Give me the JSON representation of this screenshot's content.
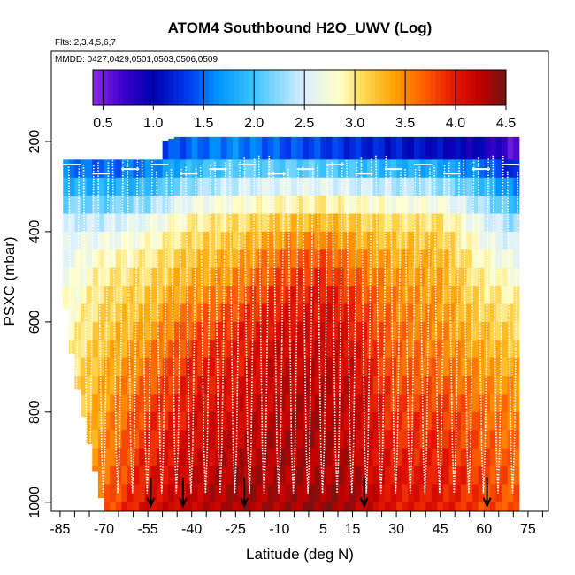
{
  "chart_data": {
    "type": "heatmap",
    "title": "ATOM4 Southbound H2O_UWV (Log)",
    "flights_label": "Flts: 2,3,4,5,6,7",
    "dates_label": "MMDD: 0427,0429,0501,0503,0506,0509",
    "xlabel": "Latitude (deg N)",
    "ylabel": "PSXC (mbar)",
    "xlim": [
      -88,
      82
    ],
    "ylim": [
      1020,
      0
    ],
    "x_ticks": [
      -85,
      -70,
      -55,
      -40,
      -25,
      -10,
      5,
      15,
      30,
      45,
      60,
      75
    ],
    "x_tick_labels": [
      "-85",
      "-70",
      "-55",
      "-40",
      "-25",
      "-10",
      "5",
      "15",
      "30",
      "45",
      "60",
      "75"
    ],
    "x_minor_ticks": [
      -80,
      -75,
      -65,
      -60,
      -50,
      -45,
      -35,
      -30,
      -20,
      -15,
      -5,
      0,
      10,
      20,
      25,
      35,
      40,
      50,
      55,
      65,
      70,
      80
    ],
    "y_ticks": [
      200,
      400,
      600,
      800,
      1000
    ],
    "y_tick_labels": [
      "200",
      "400",
      "600",
      "800",
      "1000"
    ],
    "colorbar": {
      "min": 0.4,
      "max": 4.5,
      "ticks": [
        0.5,
        1.0,
        1.5,
        2.0,
        2.5,
        3.0,
        3.5,
        4.0,
        4.5
      ],
      "tick_labels": [
        "0.5",
        "1.0",
        "1.5",
        "2.0",
        "2.5",
        "3.0",
        "3.5",
        "4.0",
        "4.5"
      ]
    },
    "pressure_levels": [
      190,
      240,
      280,
      320,
      360,
      400,
      440,
      480,
      520,
      560,
      600,
      640,
      680,
      720,
      760,
      800,
      840,
      880,
      920,
      960,
      1000
    ],
    "lat_range": [
      -84,
      72
    ],
    "lat_step": 2,
    "profile_marker_lats": [
      -54,
      -43,
      -22,
      19,
      61
    ],
    "cross_section": [
      {
        "lat": -84,
        "p_top": 210,
        "p_bottom": 500,
        "values": [
          1.3,
          1.7,
          2.1,
          2.4,
          2.5,
          2.6,
          2.8
        ]
      },
      {
        "lat": -80,
        "p_top": 210,
        "p_bottom": 700,
        "values": [
          1.3,
          1.8,
          2.3,
          2.6,
          2.7,
          2.8,
          2.9,
          3.0,
          3.1
        ]
      },
      {
        "lat": -70,
        "p_top": 210,
        "p_bottom": 1000,
        "values": [
          1.2,
          1.9,
          2.5,
          2.9,
          3.1,
          3.2,
          3.3,
          3.4,
          3.5,
          3.6,
          3.7
        ]
      },
      {
        "lat": -55,
        "p_top": 210,
        "p_bottom": 1000,
        "values": [
          1.3,
          2.0,
          2.7,
          3.0,
          3.2,
          3.4,
          3.6,
          3.8,
          3.9,
          4.0,
          4.1
        ]
      },
      {
        "lat": -40,
        "p_top": 180,
        "p_bottom": 1000,
        "values": [
          1.4,
          2.1,
          2.9,
          3.2,
          3.4,
          3.7,
          3.9,
          4.0,
          4.1,
          4.2,
          4.2
        ]
      },
      {
        "lat": -25,
        "p_top": 180,
        "p_bottom": 1000,
        "values": [
          1.5,
          2.3,
          3.0,
          3.3,
          3.6,
          3.9,
          4.0,
          4.1,
          4.2,
          4.3,
          4.3
        ]
      },
      {
        "lat": -10,
        "p_top": 180,
        "p_bottom": 1000,
        "values": [
          1.3,
          2.4,
          3.1,
          3.6,
          3.9,
          4.1,
          4.2,
          4.2,
          4.3,
          4.3,
          4.3
        ]
      },
      {
        "lat": 5,
        "p_top": 180,
        "p_bottom": 1000,
        "values": [
          1.2,
          2.4,
          3.2,
          3.7,
          4.0,
          4.1,
          4.2,
          4.3,
          4.3,
          4.3,
          4.4
        ]
      },
      {
        "lat": 15,
        "p_top": 180,
        "p_bottom": 1000,
        "values": [
          1.1,
          2.3,
          3.1,
          3.5,
          3.8,
          4.0,
          4.1,
          4.2,
          4.2,
          4.3,
          4.3
        ]
      },
      {
        "lat": 30,
        "p_top": 180,
        "p_bottom": 1000,
        "values": [
          1.0,
          2.2,
          3.0,
          3.3,
          3.5,
          3.6,
          3.7,
          3.8,
          3.9,
          4.0,
          4.0
        ]
      },
      {
        "lat": 45,
        "p_top": 180,
        "p_bottom": 1000,
        "values": [
          0.9,
          2.1,
          3.0,
          3.3,
          3.4,
          3.5,
          3.6,
          3.8,
          3.9,
          4.0,
          4.0
        ]
      },
      {
        "lat": 60,
        "p_top": 180,
        "p_bottom": 1000,
        "values": [
          0.8,
          1.8,
          2.5,
          2.8,
          3.0,
          3.2,
          3.4,
          3.6,
          3.7,
          3.8,
          3.8
        ]
      },
      {
        "lat": 70,
        "p_top": 180,
        "p_bottom": 1000,
        "values": [
          0.5,
          1.4,
          2.2,
          2.6,
          2.9,
          3.1,
          3.3,
          3.5,
          3.6,
          3.7,
          3.7
        ]
      }
    ]
  }
}
